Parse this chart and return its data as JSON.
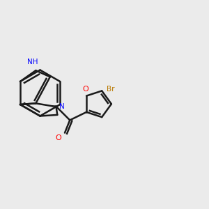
{
  "bg_color": "#ebebeb",
  "bond_color": "#1a1a1a",
  "n_color": "#0000ff",
  "o_color": "#ff0000",
  "br_color": "#b87800",
  "line_width": 1.8,
  "figsize": [
    3.0,
    3.0
  ],
  "dpi": 100,
  "xlim": [
    0.5,
    9.5
  ],
  "ylim": [
    1.0,
    9.0
  ]
}
